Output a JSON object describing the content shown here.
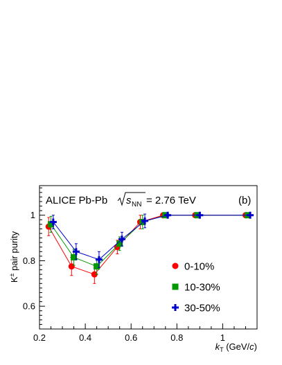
{
  "chart_data": {
    "type": "scatter",
    "experiment_label": "ALICE Pb-Pb",
    "energy_label": "= 2.76 TeV",
    "panel_label": "(b)",
    "ylabel": "K± pair purity",
    "xlabel": "k_T (GeV/c)",
    "xlim": [
      0.2,
      1.15
    ],
    "ylim": [
      0.5,
      1.13
    ],
    "x_ticks": [
      0.2,
      0.4,
      0.6,
      0.8,
      1.0
    ],
    "x_tick_labels": [
      "0.2",
      "0.4",
      "0.6",
      "0.8",
      "1"
    ],
    "y_ticks": [
      0.6,
      0.8,
      1.0
    ],
    "y_tick_labels": [
      "0.6",
      "0.8",
      "1"
    ],
    "grid": false,
    "legend_position": "lower-right",
    "series": [
      {
        "name": "0-10%",
        "marker": "circle",
        "color": "#ff0000",
        "x": [
          0.24,
          0.34,
          0.44,
          0.54,
          0.64,
          0.74,
          0.88,
          1.1
        ],
        "y": [
          0.95,
          0.775,
          0.74,
          0.86,
          0.97,
          1.0,
          1.0,
          1.0
        ],
        "err": [
          0.04,
          0.04,
          0.04,
          0.03,
          0.03,
          0.005,
          0.003,
          0.003
        ]
      },
      {
        "name": "10-30%",
        "marker": "square",
        "color": "#009900",
        "x": [
          0.25,
          0.35,
          0.45,
          0.55,
          0.65,
          0.75,
          0.89,
          1.11
        ],
        "y": [
          0.96,
          0.815,
          0.775,
          0.875,
          0.97,
          1.0,
          1.0,
          1.0
        ],
        "err": [
          0.035,
          0.035,
          0.035,
          0.03,
          0.03,
          0.005,
          0.003,
          0.003
        ]
      },
      {
        "name": "30-50%",
        "marker": "cross",
        "color": "#0000cc",
        "x": [
          0.26,
          0.36,
          0.46,
          0.56,
          0.66,
          0.76,
          0.9,
          1.12
        ],
        "y": [
          0.97,
          0.84,
          0.805,
          0.895,
          0.975,
          1.0,
          1.0,
          1.0
        ],
        "err": [
          0.03,
          0.035,
          0.035,
          0.03,
          0.03,
          0.005,
          0.003,
          0.003
        ]
      }
    ]
  }
}
